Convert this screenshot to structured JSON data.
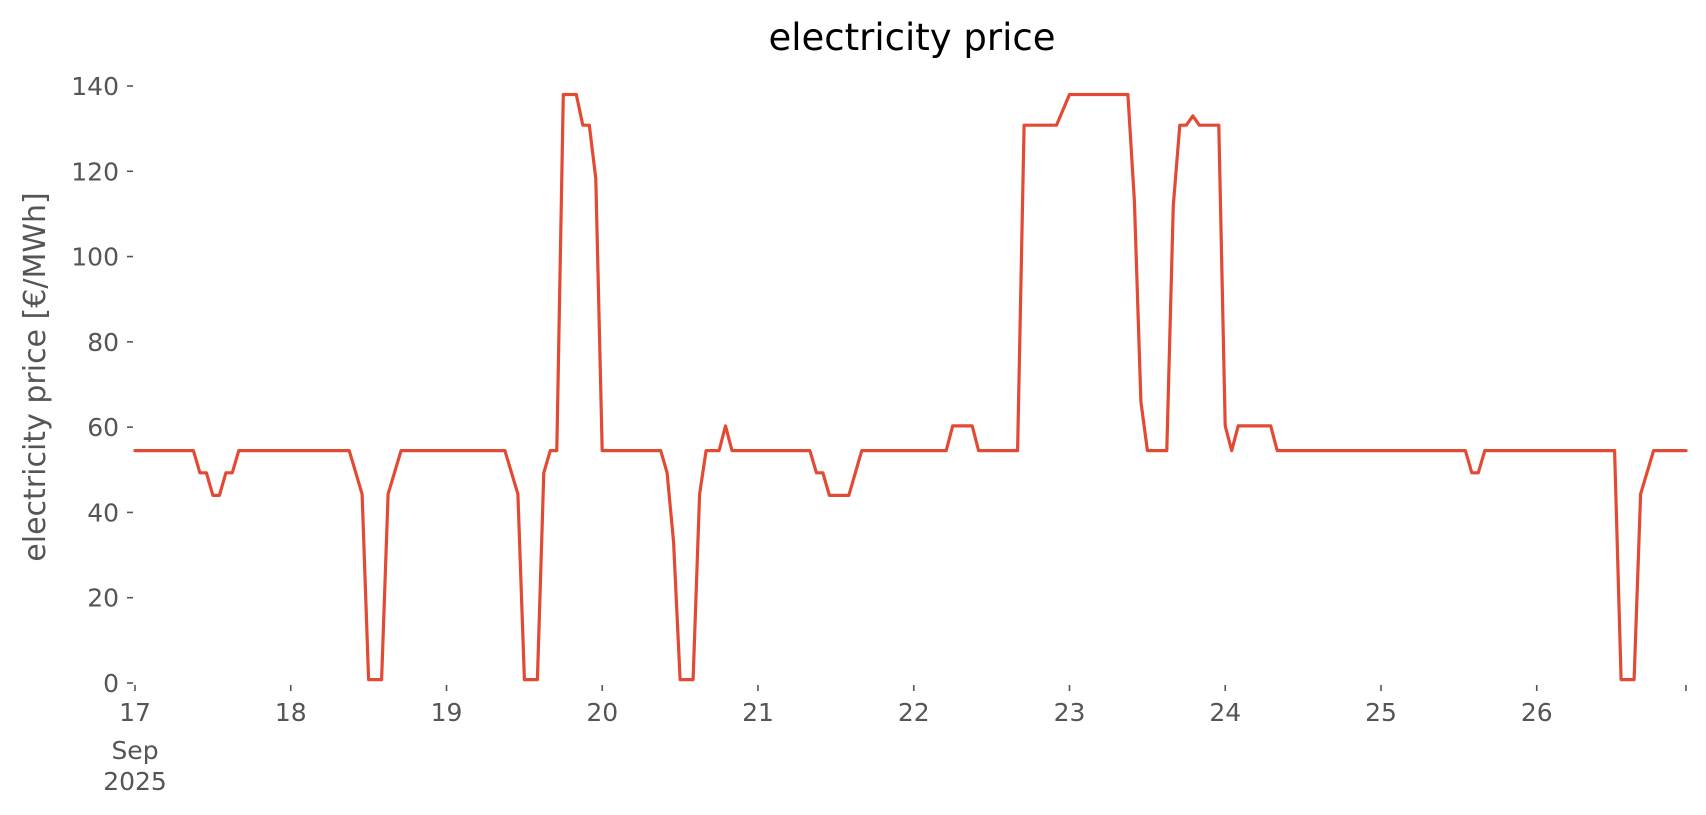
{
  "chart_data": {
    "type": "line",
    "title": "electricity price",
    "xlabel": "",
    "ylabel": "electricity price [€/MWh]",
    "ylim": [
      0,
      140
    ],
    "xlim": [
      "2025-09-17T00:00",
      "2025-09-26T23:00"
    ],
    "grid": false,
    "legend": "none",
    "yticks": [
      0,
      20,
      40,
      60,
      80,
      100,
      120,
      140
    ],
    "xticks": [
      {
        "date": "2025-09-17",
        "label": "17",
        "sub": [
          "Sep",
          "2025"
        ]
      },
      {
        "date": "2025-09-18",
        "label": "18"
      },
      {
        "date": "2025-09-19",
        "label": "19"
      },
      {
        "date": "2025-09-20",
        "label": "20"
      },
      {
        "date": "2025-09-21",
        "label": "21"
      },
      {
        "date": "2025-09-22",
        "label": "22"
      },
      {
        "date": "2025-09-23",
        "label": "23"
      },
      {
        "date": "2025-09-24",
        "label": "24"
      },
      {
        "date": "2025-09-25",
        "label": "25"
      },
      {
        "date": "2025-09-26",
        "label": "26"
      },
      {
        "date": "2025-09-27",
        "label": ""
      }
    ],
    "series": [
      {
        "color": "#e24a33",
        "points": [
          [
            "2025-09-17T00:00",
            54.5
          ],
          [
            "2025-09-17T09:00",
            54.5
          ],
          [
            "2025-09-17T10:00",
            49.3
          ],
          [
            "2025-09-17T11:00",
            49.3
          ],
          [
            "2025-09-17T12:00",
            44.0
          ],
          [
            "2025-09-17T13:00",
            44.0
          ],
          [
            "2025-09-17T14:00",
            49.3
          ],
          [
            "2025-09-17T15:00",
            49.3
          ],
          [
            "2025-09-17T16:00",
            54.5
          ],
          [
            "2025-09-18T09:00",
            54.5
          ],
          [
            "2025-09-18T11:00",
            44.3
          ],
          [
            "2025-09-18T12:00",
            0.8
          ],
          [
            "2025-09-18T14:00",
            0.8
          ],
          [
            "2025-09-18T15:00",
            44.3
          ],
          [
            "2025-09-18T17:00",
            54.5
          ],
          [
            "2025-09-19T09:00",
            54.5
          ],
          [
            "2025-09-19T11:00",
            44.3
          ],
          [
            "2025-09-19T12:00",
            0.8
          ],
          [
            "2025-09-19T14:00",
            0.8
          ],
          [
            "2025-09-19T15:00",
            49.3
          ],
          [
            "2025-09-19T16:00",
            54.5
          ],
          [
            "2025-09-19T17:00",
            54.5
          ],
          [
            "2025-09-19T18:00",
            138.0
          ],
          [
            "2025-09-19T20:00",
            138.0
          ],
          [
            "2025-09-19T21:00",
            130.8
          ],
          [
            "2025-09-19T22:00",
            130.8
          ],
          [
            "2025-09-19T23:00",
            118.3
          ],
          [
            "2025-09-20T00:00",
            54.5
          ],
          [
            "2025-09-20T09:00",
            54.5
          ],
          [
            "2025-09-20T10:00",
            49.3
          ],
          [
            "2025-09-20T11:00",
            33.0
          ],
          [
            "2025-09-20T12:00",
            0.8
          ],
          [
            "2025-09-20T14:00",
            0.8
          ],
          [
            "2025-09-20T15:00",
            44.3
          ],
          [
            "2025-09-20T16:00",
            54.5
          ],
          [
            "2025-09-20T18:00",
            54.5
          ],
          [
            "2025-09-20T19:00",
            60.3
          ],
          [
            "2025-09-20T20:00",
            54.5
          ],
          [
            "2025-09-21T08:00",
            54.5
          ],
          [
            "2025-09-21T09:00",
            49.3
          ],
          [
            "2025-09-21T10:00",
            49.3
          ],
          [
            "2025-09-21T11:00",
            44.0
          ],
          [
            "2025-09-21T14:00",
            44.0
          ],
          [
            "2025-09-21T16:00",
            54.5
          ],
          [
            "2025-09-22T05:00",
            54.5
          ],
          [
            "2025-09-22T06:00",
            60.3
          ],
          [
            "2025-09-22T09:00",
            60.3
          ],
          [
            "2025-09-22T10:00",
            54.5
          ],
          [
            "2025-09-22T16:00",
            54.5
          ],
          [
            "2025-09-22T17:00",
            130.8
          ],
          [
            "2025-09-22T22:00",
            130.8
          ],
          [
            "2025-09-23T00:00",
            138.0
          ],
          [
            "2025-09-23T09:00",
            138.0
          ],
          [
            "2025-09-23T10:00",
            113.0
          ],
          [
            "2025-09-23T11:00",
            66.0
          ],
          [
            "2025-09-23T12:00",
            54.5
          ],
          [
            "2025-09-23T15:00",
            54.5
          ],
          [
            "2025-09-23T16:00",
            112.0
          ],
          [
            "2025-09-23T17:00",
            130.8
          ],
          [
            "2025-09-23T18:00",
            130.8
          ],
          [
            "2025-09-23T19:00",
            133.0
          ],
          [
            "2025-09-23T20:00",
            130.8
          ],
          [
            "2025-09-23T23:00",
            130.8
          ],
          [
            "2025-09-24T00:00",
            60.3
          ],
          [
            "2025-09-24T01:00",
            54.5
          ],
          [
            "2025-09-24T02:00",
            60.3
          ],
          [
            "2025-09-24T07:00",
            60.3
          ],
          [
            "2025-09-24T08:00",
            54.5
          ],
          [
            "2025-09-25T13:00",
            54.5
          ],
          [
            "2025-09-25T14:00",
            49.3
          ],
          [
            "2025-09-25T15:00",
            49.3
          ],
          [
            "2025-09-25T16:00",
            54.5
          ],
          [
            "2025-09-26T12:00",
            54.5
          ],
          [
            "2025-09-26T13:00",
            0.8
          ],
          [
            "2025-09-26T15:00",
            0.8
          ],
          [
            "2025-09-26T16:00",
            44.3
          ],
          [
            "2025-09-26T18:00",
            54.5
          ],
          [
            "2025-09-26T23:00",
            54.5
          ]
        ]
      }
    ]
  }
}
